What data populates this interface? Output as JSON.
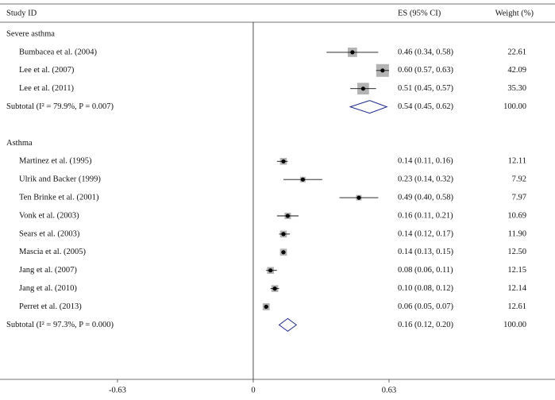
{
  "chart_data": {
    "type": "forest",
    "columns": {
      "study": "Study ID",
      "es": "ES (95% CI)",
      "weight": "Weight (%)"
    },
    "xlim": [
      -1.175,
      1.4
    ],
    "xticks": [
      -0.63,
      0,
      0.63
    ],
    "box_color": "#b3b3b3",
    "diamond_color": "#1f2a8a",
    "groups": [
      {
        "name": "Severe asthma",
        "studies": [
          {
            "label": "Bumbacea et al. (2004)",
            "es": 0.46,
            "lo": 0.34,
            "hi": 0.58,
            "es_label": "0.46 (0.34, 0.58)",
            "weight": 22.61,
            "weight_label": "22.61"
          },
          {
            "label": "Lee et al. (2007)",
            "es": 0.6,
            "lo": 0.57,
            "hi": 0.63,
            "es_label": "0.60 (0.57, 0.63)",
            "weight": 42.09,
            "weight_label": "42.09"
          },
          {
            "label": "Lee et al. (2011)",
            "es": 0.51,
            "lo": 0.45,
            "hi": 0.57,
            "es_label": "0.51 (0.45, 0.57)",
            "weight": 35.3,
            "weight_label": "35.30"
          }
        ],
        "subtotal": {
          "label": "Subtotal (I² = 79.9%, P = 0.007)",
          "es": 0.54,
          "lo": 0.45,
          "hi": 0.62,
          "es_label": "0.54 (0.45, 0.62)",
          "weight": 100,
          "weight_label": "100.00"
        }
      },
      {
        "name": "Asthma",
        "studies": [
          {
            "label": "Martinez et al. (1995)",
            "es": 0.14,
            "lo": 0.11,
            "hi": 0.16,
            "es_label": "0.14 (0.11, 0.16)",
            "weight": 12.11,
            "weight_label": "12.11"
          },
          {
            "label": "Ulrik and Backer (1999)",
            "es": 0.23,
            "lo": 0.14,
            "hi": 0.32,
            "es_label": "0.23 (0.14, 0.32)",
            "weight": 7.92,
            "weight_label": "7.92"
          },
          {
            "label": "Ten Brinke et al. (2001)",
            "es": 0.49,
            "lo": 0.4,
            "hi": 0.58,
            "es_label": "0.49 (0.40, 0.58)",
            "weight": 7.97,
            "weight_label": "7.97"
          },
          {
            "label": "Vonk et al. (2003)",
            "es": 0.16,
            "lo": 0.11,
            "hi": 0.21,
            "es_label": "0.16 (0.11, 0.21)",
            "weight": 10.69,
            "weight_label": "10.69"
          },
          {
            "label": "Sears et al. (2003)",
            "es": 0.14,
            "lo": 0.12,
            "hi": 0.17,
            "es_label": "0.14 (0.12, 0.17)",
            "weight": 11.9,
            "weight_label": "11.90"
          },
          {
            "label": "Mascia et al. (2005)",
            "es": 0.14,
            "lo": 0.13,
            "hi": 0.15,
            "es_label": "0.14 (0.13, 0.15)",
            "weight": 12.5,
            "weight_label": "12.50"
          },
          {
            "label": "Jang et al. (2007)",
            "es": 0.08,
            "lo": 0.06,
            "hi": 0.11,
            "es_label": "0.08 (0.06, 0.11)",
            "weight": 12.15,
            "weight_label": "12.15"
          },
          {
            "label": "Jang et al. (2010)",
            "es": 0.1,
            "lo": 0.08,
            "hi": 0.12,
            "es_label": "0.10 (0.08, 0.12)",
            "weight": 12.14,
            "weight_label": "12.14"
          },
          {
            "label": "Perret et al. (2013)",
            "es": 0.06,
            "lo": 0.05,
            "hi": 0.07,
            "es_label": "0.06 (0.05, 0.07)",
            "weight": 12.61,
            "weight_label": "12.61"
          }
        ],
        "subtotal": {
          "label": "Subtotal (I² = 97.3%, P = 0.000)",
          "es": 0.16,
          "lo": 0.12,
          "hi": 0.2,
          "es_label": "0.16 (0.12, 0.20)",
          "weight": 100,
          "weight_label": "100.00"
        }
      }
    ]
  }
}
